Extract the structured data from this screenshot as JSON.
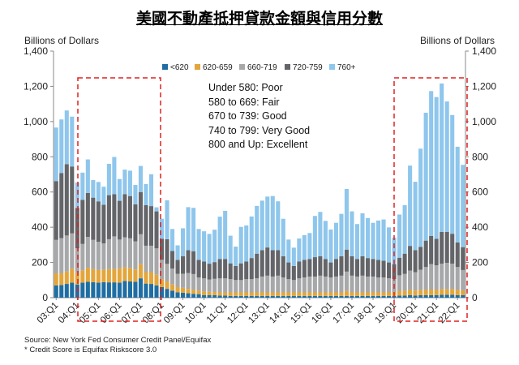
{
  "title": "美國不動產抵押貸款金額與信用分數",
  "left_axis_label": "Billions of Dollars",
  "right_axis_label": "Billions of Dollars",
  "annotation": [
    "Under 580: Poor",
    "580 to 669: Fair",
    "670 to 739: Good",
    "740 to 799: Very Good",
    "800 and Up: Excellent"
  ],
  "source": "Source: New York Fed Consumer Credit Panel/Equifax",
  "note": "* Credit Score is Equifax Riskscore 3.0",
  "chart_data": {
    "type": "bar",
    "stacked": true,
    "first_quarter": "03:Q1",
    "num_quarters": 78,
    "tick_labels": [
      "03:Q1",
      "04:Q1",
      "05:Q1",
      "06:Q1",
      "07:Q1",
      "08:Q1",
      "09:Q1",
      "10:Q1",
      "11:Q1",
      "12:Q1",
      "13:Q1",
      "14:Q1",
      "15:Q1",
      "16:Q1",
      "17:Q1",
      "18:Q1",
      "19:Q1",
      "20:Q1",
      "21:Q1",
      "22:Q1"
    ],
    "ylim": [
      0,
      1400
    ],
    "yticks": [
      "0",
      "200",
      "400",
      "600",
      "800",
      "1,000",
      "1,200",
      "1,400"
    ],
    "ytick_values": [
      0,
      200,
      400,
      600,
      800,
      1000,
      1200,
      1400
    ],
    "legend_position": "top-center",
    "series": [
      {
        "name": "<620",
        "color": "#1f6ea3",
        "values": [
          70,
          72,
          78,
          85,
          75,
          85,
          90,
          88,
          85,
          88,
          87,
          87,
          85,
          95,
          92,
          90,
          110,
          80,
          78,
          70,
          60,
          50,
          40,
          30,
          28,
          25,
          22,
          20,
          15,
          15,
          14,
          12,
          12,
          10,
          10,
          10,
          10,
          10,
          10,
          10,
          10,
          10,
          10,
          10,
          10,
          10,
          10,
          10,
          10,
          10,
          10,
          10,
          10,
          10,
          10,
          10,
          10,
          10,
          10,
          10,
          10,
          10,
          10,
          10,
          10,
          12,
          12,
          14,
          12,
          14,
          14,
          14,
          14,
          16,
          16,
          16,
          14,
          14
        ]
      },
      {
        "name": "620-659",
        "color": "#e3a63c",
        "values": [
          68,
          66,
          70,
          80,
          65,
          70,
          80,
          75,
          72,
          70,
          75,
          76,
          80,
          78,
          75,
          70,
          80,
          65,
          67,
          60,
          45,
          42,
          35,
          30,
          28,
          25,
          22,
          20,
          20,
          18,
          18,
          18,
          18,
          20,
          20,
          20,
          20,
          20,
          20,
          20,
          20,
          20,
          20,
          20,
          20,
          20,
          20,
          20,
          20,
          20,
          20,
          20,
          20,
          20,
          20,
          28,
          20,
          20,
          20,
          20,
          20,
          20,
          20,
          20,
          20,
          25,
          28,
          30,
          28,
          30,
          30,
          32,
          30,
          32,
          32,
          32,
          30,
          28
        ]
      },
      {
        "name": "660-719",
        "color": "#a7a8aa",
        "values": [
          190,
          200,
          205,
          200,
          140,
          150,
          175,
          165,
          160,
          150,
          170,
          185,
          165,
          170,
          170,
          160,
          170,
          150,
          150,
          150,
          110,
          100,
          90,
          75,
          80,
          90,
          90,
          75,
          75,
          70,
          75,
          80,
          80,
          75,
          70,
          70,
          75,
          75,
          80,
          90,
          95,
          90,
          95,
          85,
          75,
          70,
          80,
          85,
          90,
          90,
          95,
          90,
          85,
          90,
          95,
          110,
          95,
          90,
          95,
          90,
          90,
          85,
          85,
          80,
          75,
          90,
          95,
          110,
          105,
          115,
          130,
          145,
          140,
          145,
          150,
          145,
          130,
          115
        ]
      },
      {
        "name": "720-759",
        "color": "#636569",
        "values": [
          334,
          370,
          405,
          380,
          230,
          250,
          250,
          240,
          230,
          220,
          250,
          240,
          220,
          245,
          240,
          210,
          240,
          230,
          225,
          210,
          120,
          140,
          100,
          80,
          100,
          130,
          130,
          100,
          95,
          90,
          95,
          110,
          110,
          90,
          80,
          95,
          100,
          120,
          140,
          150,
          160,
          150,
          145,
          120,
          95,
          80,
          95,
          100,
          100,
          110,
          110,
          100,
          85,
          100,
          110,
          125,
          110,
          100,
          110,
          105,
          100,
          100,
          95,
          90,
          85,
          100,
          115,
          140,
          125,
          130,
          150,
          160,
          150,
          180,
          175,
          170,
          140,
          130
        ]
      },
      {
        "name": "760+",
        "color": "#8ec6ec",
        "values": [
          304,
          304,
          305,
          283,
          144,
          155,
          190,
          100,
          110,
          102,
          178,
          211,
          124,
          139,
          144,
          110,
          148,
          120,
          181,
          23,
          113,
          221,
          125,
          82,
          158,
          244,
          246,
          175,
          172,
          169,
          184,
          240,
          273,
          157,
          110,
          207,
          205,
          236,
          271,
          281,
          289,
          307,
          277,
          213,
          130,
          104,
          131,
          140,
          147,
          234,
          252,
          216,
          187,
          205,
          241,
          344,
          255,
          198,
          244,
          227,
          205,
          223,
          234,
          199,
          151,
          245,
          275,
          456,
          388,
          557,
          726,
          822,
          805,
          843,
          741,
          674,
          543,
          467
        ]
      }
    ]
  }
}
